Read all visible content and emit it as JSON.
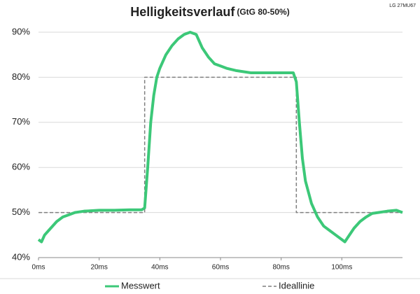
{
  "chart_data": {
    "type": "line",
    "title": "Helligkeitsverlauf",
    "subtitle": "(GtG 80-50%)",
    "annotation": "LG 27MU67",
    "xlim": [
      0,
      120
    ],
    "xticks": [
      {
        "value": 0,
        "label": "0ms"
      },
      {
        "value": 20,
        "label": "20ms"
      },
      {
        "value": 40,
        "label": "40ms"
      },
      {
        "value": 60,
        "label": "60ms"
      },
      {
        "value": 80,
        "label": "80ms"
      },
      {
        "value": 100,
        "label": "100ms"
      }
    ],
    "ylim": [
      40,
      90
    ],
    "yticks": [
      {
        "value": 40,
        "label": "40%"
      },
      {
        "value": 50,
        "label": "50%"
      },
      {
        "value": 60,
        "label": "60%"
      },
      {
        "value": 70,
        "label": "70%"
      },
      {
        "value": 80,
        "label": "80%"
      },
      {
        "value": 90,
        "label": "90%"
      }
    ],
    "grid": true,
    "legend": "bottom",
    "series": [
      {
        "name": "Messwert",
        "color": "#3cc878",
        "dash": false,
        "x": [
          0,
          1,
          2,
          4,
          6,
          8,
          10,
          12,
          15,
          20,
          25,
          30,
          34,
          35,
          36,
          37,
          38,
          39,
          40,
          42,
          44,
          46,
          48,
          50,
          52,
          53,
          54,
          56,
          58,
          60,
          62,
          65,
          70,
          75,
          80,
          84,
          85,
          86,
          87,
          88,
          90,
          92,
          94,
          96,
          98,
          100,
          101,
          102,
          104,
          106,
          108,
          110,
          112,
          115,
          118,
          120
        ],
        "values": [
          44,
          43.5,
          45,
          46.5,
          48,
          49,
          49.5,
          50,
          50.3,
          50.5,
          50.5,
          50.6,
          50.6,
          51,
          60,
          70,
          76,
          80,
          82,
          85,
          87,
          88.5,
          89.5,
          90,
          89.5,
          88,
          86.5,
          84.5,
          83,
          82.5,
          82,
          81.5,
          81,
          81,
          81,
          81,
          79,
          70,
          62,
          57,
          52,
          49,
          47,
          46,
          45,
          44,
          43.5,
          44.5,
          46.5,
          48,
          49,
          49.8,
          50,
          50.3,
          50.5,
          50
        ]
      },
      {
        "name": "Ideallinie",
        "color": "#7f7f7f",
        "dash": true,
        "x": [
          0,
          35,
          35,
          85,
          85,
          120
        ],
        "values": [
          50,
          50,
          80,
          80,
          50,
          50
        ]
      }
    ]
  }
}
